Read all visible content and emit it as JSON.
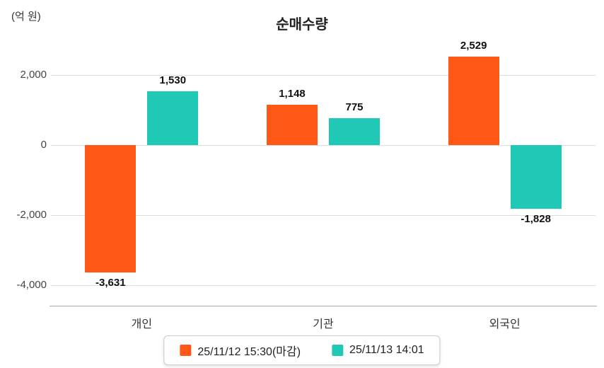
{
  "title": "순매수량",
  "unit_label": "(억 원)",
  "chart_data": {
    "type": "bar",
    "categories": [
      "개인",
      "기관",
      "외국인"
    ],
    "series": [
      {
        "name": "25/11/12 15:30(마감)",
        "color": "#ff5716",
        "values": [
          -3631,
          1148,
          2529
        ]
      },
      {
        "name": "25/11/13 14:01",
        "color": "#1fc9b5",
        "values": [
          1530,
          775,
          -1828
        ]
      }
    ],
    "value_labels": {
      "series1": [
        "-3,631",
        "1,148",
        "2,529"
      ],
      "series2": [
        "1,530",
        "775",
        "-1,828"
      ]
    },
    "ylabel": "(억 원)",
    "xlabel": "",
    "yticks": [
      2000,
      0,
      -2000,
      -4000
    ],
    "ylim": [
      -4600,
      2900
    ],
    "grid": true,
    "legend_position": "bottom"
  }
}
